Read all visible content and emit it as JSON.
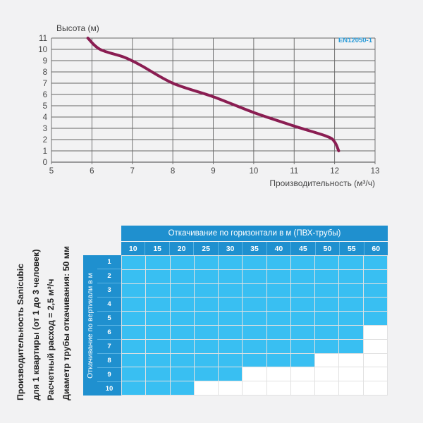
{
  "chart_data": {
    "type": "line",
    "ylabel": "Высота (м)",
    "xlabel": "Производительность (м³/ч)",
    "badge": "EN12050-1",
    "xlim": [
      5,
      13
    ],
    "ylim": [
      0,
      11
    ],
    "xticks": [
      5,
      6,
      7,
      8,
      9,
      10,
      11,
      12,
      13
    ],
    "yticks": [
      0,
      1,
      2,
      3,
      4,
      5,
      6,
      7,
      8,
      9,
      10,
      11
    ],
    "grid": true,
    "series": [
      {
        "color": "#8a1d52",
        "x": [
          5.9,
          6.2,
          6.8,
          7.2,
          8.0,
          9.0,
          10.0,
          11.0,
          11.8,
          12.0,
          12.1
        ],
        "y": [
          11.0,
          10.0,
          9.3,
          8.6,
          7.0,
          5.8,
          4.4,
          3.2,
          2.3,
          1.8,
          1.0
        ]
      }
    ]
  },
  "side_label": {
    "line1": "Производительность Sanicubic",
    "line2": "для 1 квартиры (от 1 до 3 человек)",
    "line3": "Расчетный расход = 2,5 м³/ч",
    "line4": "Диаметр трубы откачивания: 50 мм"
  },
  "table": {
    "col_header": "Откачивание по горизонтали  в м (ПВХ-трубы)",
    "row_header": "Откачивание по вертикали в м",
    "columns": [
      "10",
      "15",
      "20",
      "25",
      "30",
      "35",
      "40",
      "45",
      "50",
      "55",
      "60"
    ],
    "rows": [
      "1",
      "2",
      "3",
      "4",
      "5",
      "6",
      "7",
      "8",
      "9",
      "10"
    ],
    "allowed_columns_per_row": [
      11,
      11,
      11,
      11,
      11,
      10,
      10,
      8,
      5,
      3
    ],
    "colors": {
      "allowed": "#39bff2",
      "not_allowed": "#ffffff",
      "header": "#1f90cf"
    }
  }
}
